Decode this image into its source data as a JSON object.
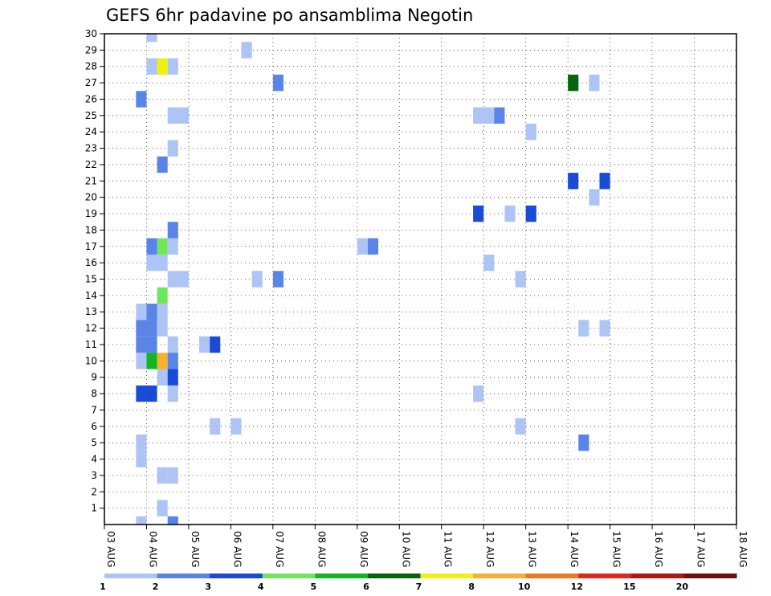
{
  "chart_data": {
    "type": "heatmap",
    "title": "GEFS 6hr padavine po ansamblima Negotin",
    "x_tick_labels": [
      "03 AUG",
      "04 AUG",
      "05 AUG",
      "06 AUG",
      "07 AUG",
      "08 AUG",
      "09 AUG",
      "10 AUG",
      "11 AUG",
      "12 AUG",
      "13 AUG",
      "14 AUG",
      "15 AUG",
      "16 AUG",
      "17 AUG",
      "18 AUG"
    ],
    "y_tick_labels": [
      "1",
      "2",
      "3",
      "4",
      "5",
      "6",
      "7",
      "8",
      "9",
      "10",
      "11",
      "12",
      "13",
      "14",
      "15",
      "16",
      "17",
      "18",
      "19",
      "20",
      "21",
      "22",
      "23",
      "24",
      "25",
      "26",
      "27",
      "28",
      "29",
      "30"
    ],
    "xlim": [
      0,
      60
    ],
    "ylim": [
      0,
      30
    ],
    "grid": true,
    "time_step_hours": 6,
    "legend": {
      "placement": "bottom",
      "labels": [
        "1",
        "2",
        "3",
        "4",
        "5",
        "6",
        "7",
        "8",
        "10",
        "12",
        "15",
        "20"
      ],
      "colors": [
        "#adc4f5",
        "#5a84e8",
        "#1a4ad8",
        "#6ee85a",
        "#10b820",
        "#066410",
        "#f0f010",
        "#f8b030",
        "#f07818",
        "#e02818",
        "#b01818",
        "#701010"
      ]
    },
    "cells": [
      {
        "t": 4,
        "m": 29,
        "v": 1
      },
      {
        "t": 4,
        "m": 27,
        "v": 1
      },
      {
        "t": 5,
        "m": 27,
        "v": 7
      },
      {
        "t": 6,
        "m": 27,
        "v": 1
      },
      {
        "t": 3,
        "m": 25,
        "v": 2
      },
      {
        "t": 6,
        "m": 24,
        "v": 1
      },
      {
        "t": 7,
        "m": 24,
        "v": 1
      },
      {
        "t": 6,
        "m": 22,
        "v": 1
      },
      {
        "t": 5,
        "m": 21,
        "v": 2
      },
      {
        "t": 6,
        "m": 17,
        "v": 2
      },
      {
        "t": 5,
        "m": 16,
        "v": 4
      },
      {
        "t": 4,
        "m": 16,
        "v": 2
      },
      {
        "t": 6,
        "m": 16,
        "v": 1
      },
      {
        "t": 4,
        "m": 15,
        "v": 1
      },
      {
        "t": 5,
        "m": 15,
        "v": 1
      },
      {
        "t": 6,
        "m": 14,
        "v": 1
      },
      {
        "t": 7,
        "m": 14,
        "v": 1
      },
      {
        "t": 5,
        "m": 13,
        "v": 4
      },
      {
        "t": 5,
        "m": 12,
        "v": 1
      },
      {
        "t": 4,
        "m": 12,
        "v": 2
      },
      {
        "t": 3,
        "m": 12,
        "v": 1
      },
      {
        "t": 3,
        "m": 11,
        "v": 2
      },
      {
        "t": 4,
        "m": 11,
        "v": 2
      },
      {
        "t": 5,
        "m": 11,
        "v": 1
      },
      {
        "t": 3,
        "m": 10,
        "v": 2
      },
      {
        "t": 4,
        "m": 10,
        "v": 2
      },
      {
        "t": 6,
        "m": 10,
        "v": 1
      },
      {
        "t": 3,
        "m": 9,
        "v": 1
      },
      {
        "t": 4,
        "m": 9,
        "v": 5
      },
      {
        "t": 5,
        "m": 9,
        "v": 8
      },
      {
        "t": 6,
        "m": 9,
        "v": 2
      },
      {
        "t": 5,
        "m": 8,
        "v": 1
      },
      {
        "t": 6,
        "m": 8,
        "v": 3
      },
      {
        "t": 3,
        "m": 7,
        "v": 3
      },
      {
        "t": 4,
        "m": 7,
        "v": 3
      },
      {
        "t": 6,
        "m": 7,
        "v": 1
      },
      {
        "t": 3,
        "m": 4,
        "v": 1
      },
      {
        "t": 3,
        "m": 3,
        "v": 1
      },
      {
        "t": 5,
        "m": 2,
        "v": 1
      },
      {
        "t": 6,
        "m": 2,
        "v": 1
      },
      {
        "t": 5,
        "m": 0,
        "v": 1
      },
      {
        "t": 3,
        "m": -1,
        "v": 1
      },
      {
        "t": 6,
        "m": -1,
        "v": 2
      },
      {
        "t": 13,
        "m": 28,
        "v": 1
      },
      {
        "t": 16,
        "m": 26,
        "v": 2
      },
      {
        "t": 9,
        "m": 10,
        "v": 1
      },
      {
        "t": 10,
        "m": 10,
        "v": 3
      },
      {
        "t": 14,
        "m": 14,
        "v": 1
      },
      {
        "t": 16,
        "m": 14,
        "v": 2
      },
      {
        "t": 10,
        "m": 5,
        "v": 1
      },
      {
        "t": 12,
        "m": 5,
        "v": 1
      },
      {
        "t": 24,
        "m": 16,
        "v": 1
      },
      {
        "t": 25,
        "m": 16,
        "v": 2
      },
      {
        "t": 35,
        "m": 24,
        "v": 1
      },
      {
        "t": 36,
        "m": 24,
        "v": 1
      },
      {
        "t": 37,
        "m": 24,
        "v": 2
      },
      {
        "t": 35,
        "m": 18,
        "v": 3
      },
      {
        "t": 36,
        "m": 15,
        "v": 1
      },
      {
        "t": 35,
        "m": 7,
        "v": 1
      },
      {
        "t": 38,
        "m": 18,
        "v": 1
      },
      {
        "t": 40,
        "m": 23,
        "v": 1
      },
      {
        "t": 40,
        "m": 18,
        "v": 3
      },
      {
        "t": 39,
        "m": 14,
        "v": 1
      },
      {
        "t": 39,
        "m": 5,
        "v": 1
      },
      {
        "t": 44,
        "m": 26,
        "v": 6
      },
      {
        "t": 46,
        "m": 26,
        "v": 1
      },
      {
        "t": 44,
        "m": 20,
        "v": 3
      },
      {
        "t": 46,
        "m": 19,
        "v": 1
      },
      {
        "t": 47,
        "m": 20,
        "v": 3
      },
      {
        "t": 45,
        "m": 11,
        "v": 1
      },
      {
        "t": 47,
        "m": 11,
        "v": 1
      },
      {
        "t": 45,
        "m": 4,
        "v": 2
      }
    ]
  }
}
